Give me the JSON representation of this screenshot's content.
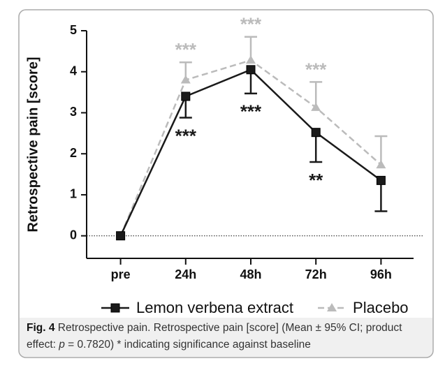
{
  "chart_data": {
    "type": "line",
    "ylabel": "Retrospective pain [score]",
    "categories": [
      "pre",
      "24h",
      "48h",
      "72h",
      "96h"
    ],
    "series": [
      {
        "name": "Lemon verbena extract",
        "color": "#1a1a1a",
        "marker": "square",
        "dashed": false,
        "values": [
          0,
          3.4,
          4.05,
          2.52,
          1.35
        ],
        "errors": [
          null,
          0.52,
          0.58,
          0.72,
          0.75
        ],
        "error_direction": "down",
        "annotations": [
          null,
          "***",
          "***",
          "**",
          null
        ]
      },
      {
        "name": "Placebo",
        "color": "#bbbbbb",
        "marker": "triangle",
        "dashed": true,
        "values": [
          0,
          3.8,
          4.28,
          3.13,
          1.73
        ],
        "errors": [
          null,
          0.43,
          0.57,
          0.62,
          0.7
        ],
        "error_direction": "up",
        "annotations": [
          null,
          "***",
          "***",
          "***",
          null
        ]
      }
    ],
    "ylim": [
      -0.55,
      5
    ],
    "yticks": [
      0,
      1,
      2,
      3,
      4,
      5
    ],
    "zero_line": true
  },
  "caption": {
    "label": "Fig. 4",
    "text_before": "Retrospective pain. Retrospective pain [score] (Mean ± 95% CI; product effect: ",
    "italic": "p",
    "text_after": " = 0.7820) * indicating significance against baseline"
  }
}
